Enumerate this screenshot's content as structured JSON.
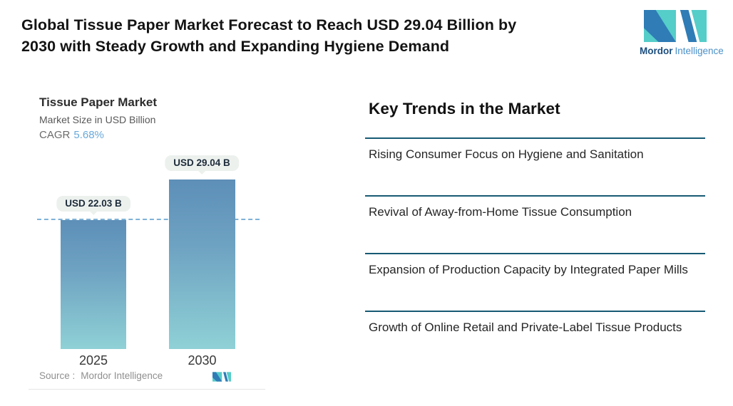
{
  "header": {
    "title_lines": [
      "Global Tissue Paper Market Forecast to Reach USD 29.04 Billion by",
      "2030 with Steady Growth and Expanding Hygiene Demand"
    ],
    "logo": {
      "word1": "Mordor",
      "word2": "Intelligence"
    }
  },
  "chart": {
    "title": "Tissue Paper Market",
    "subtitle": "Market Size in USD Billion",
    "cagr_label": "CAGR",
    "cagr_value": "5.68%",
    "source_label": "Source :",
    "source_value": "Mordor Intelligence"
  },
  "chart_data": {
    "type": "bar",
    "title": "Tissue Paper Market",
    "ylabel": "Market Size in USD Billion",
    "categories": [
      "2025",
      "2030"
    ],
    "values": [
      22.03,
      29.04
    ],
    "value_labels": [
      "USD 22.03 B",
      "USD 29.04 B"
    ],
    "cagr_percent": 5.68,
    "dashed_reference_value": 22.03,
    "ylim": [
      0,
      31
    ],
    "grid": "off",
    "legend": "none",
    "bar_gradient_top": "#5d8fb8",
    "bar_gradient_bottom": "#8fd1d6",
    "dashed_line_color": "#7fb2d8",
    "tooltip_bg": "#edf1ee"
  },
  "trends": {
    "heading": "Key Trends in the Market",
    "items": [
      "Rising Consumer Focus on Hygiene and Sanitation",
      "Revival of Away-from-Home Tissue Consumption",
      "Expansion of Production Capacity by Integrated Paper Mills",
      "Growth of Online Retail and Private-Label Tissue Products"
    ],
    "divider_color": "#175a74"
  },
  "colors": {
    "logo_blue": "#2f7cb6",
    "logo_teal": "#55cdc9",
    "logo_text_dark": "#1b4d7e",
    "logo_text_light": "#4a90c8",
    "title_text": "#131313",
    "cagr_accent": "#69a9db"
  }
}
